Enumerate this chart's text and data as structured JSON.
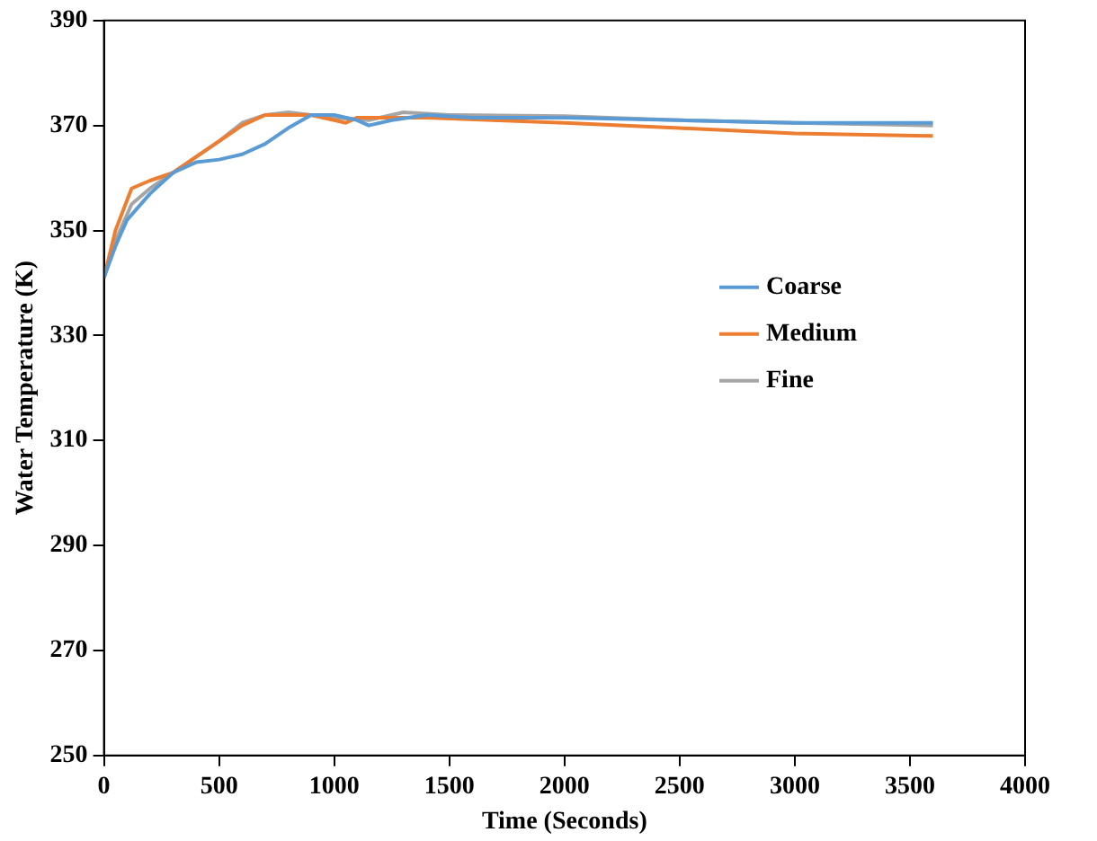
{
  "chart_data": {
    "type": "line",
    "xlabel": "Time (Seconds)",
    "ylabel": "Water Temperature (K)",
    "xlim": [
      0,
      4000
    ],
    "xticks": [
      0,
      500,
      1000,
      1500,
      2000,
      2500,
      3000,
      3500,
      4000
    ],
    "ylim": [
      250,
      390
    ],
    "yticks": [
      250,
      270,
      290,
      310,
      330,
      350,
      370,
      390
    ],
    "grid": false,
    "legend": "right",
    "marker": "none",
    "line_style": "solid",
    "series": [
      {
        "name": "Coarse",
        "color": "#5b9bd5",
        "x": [
          0,
          50,
          100,
          200,
          300,
          400,
          500,
          600,
          700,
          800,
          900,
          1000,
          1100,
          1150,
          1250,
          1400,
          1600,
          2000,
          2500,
          3000,
          3600
        ],
        "values": [
          341,
          347,
          352,
          357,
          361,
          363,
          363.5,
          364.5,
          366.5,
          369.5,
          372,
          372,
          371,
          370,
          371,
          372,
          371.5,
          371.5,
          371,
          370.5,
          370.5
        ]
      },
      {
        "name": "Medium",
        "color": "#ed7d31",
        "x": [
          0,
          50,
          120,
          200,
          300,
          400,
          500,
          600,
          700,
          800,
          900,
          1000,
          1050,
          1100,
          1200,
          1400,
          2000,
          2500,
          3000,
          3600
        ],
        "values": [
          341,
          350,
          358,
          359.5,
          361,
          364,
          367,
          370,
          372,
          372,
          372,
          371,
          370.5,
          371.5,
          371.5,
          371.5,
          370.5,
          369.5,
          368.5,
          368
        ]
      },
      {
        "name": "Fine",
        "color": "#a5a5a5",
        "x": [
          0,
          50,
          120,
          200,
          300,
          400,
          500,
          600,
          700,
          800,
          900,
          1000,
          1150,
          1300,
          1500,
          2000,
          2500,
          3000,
          3600
        ],
        "values": [
          341,
          348,
          355,
          358,
          361,
          364,
          367,
          370.5,
          372,
          372.5,
          372,
          371.5,
          371,
          372.5,
          372,
          371.8,
          371,
          370.5,
          370
        ]
      }
    ]
  }
}
